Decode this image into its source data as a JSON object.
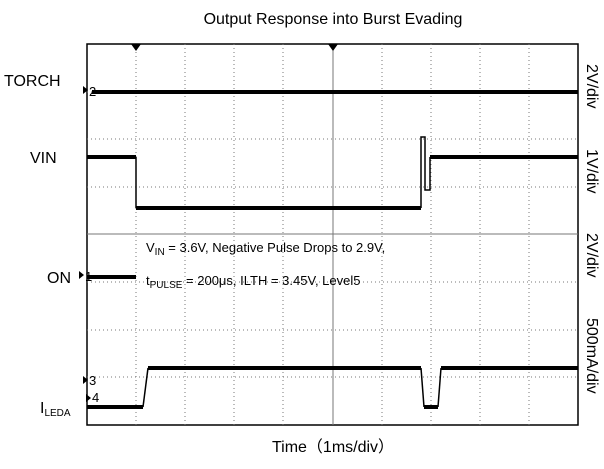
{
  "chart_data": {
    "type": "oscilloscope",
    "title": "Output Response into Burst Evading",
    "x_label": "Time（1ms/div）",
    "channels": [
      {
        "label": "TORCH",
        "marker": "2",
        "scale": "2V/div"
      },
      {
        "label": "VIN",
        "scale": "1V/div"
      },
      {
        "label": "ON",
        "marker": "1",
        "scale": "2V/div"
      },
      {
        "label": "I",
        "label_sub": "LEDA",
        "marker": "4",
        "scale": "500mA/div"
      }
    ],
    "extra_marker": "3",
    "annotation": [
      {
        "main": "V",
        "sub": "IN",
        "rest": " = 3.6V, Negative Pulse Drops to 2.9V,"
      },
      {
        "main": "t",
        "sub": "PULSE",
        "rest": " = 200μs, ILTH = 3.45V, Level5"
      }
    ]
  }
}
